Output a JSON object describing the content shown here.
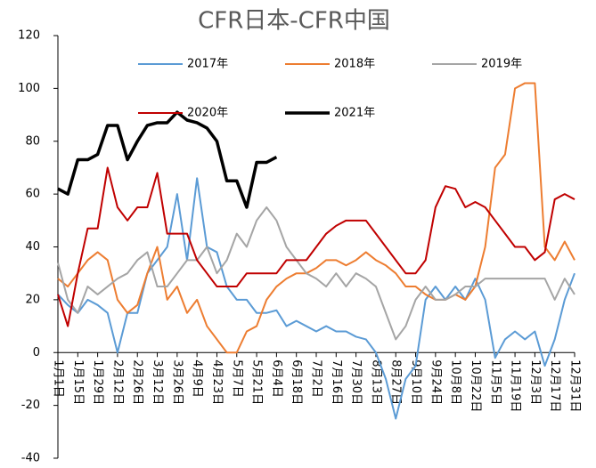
{
  "chart_data": {
    "type": "line",
    "title": "CFR日本-CFR中国",
    "categories": [
      "1月1日",
      null,
      "1月15日",
      null,
      "1月29日",
      null,
      "2月12日",
      null,
      "2月26日",
      null,
      "3月12日",
      null,
      "3月26日",
      null,
      "4月9日",
      null,
      "4月23日",
      null,
      "5月7日",
      null,
      "5月21日",
      null,
      "6月4日",
      null,
      "6月18日",
      null,
      "7月2日",
      null,
      "7月16日",
      null,
      "7月30日",
      null,
      "8月13日",
      null,
      "8月27日",
      null,
      "9月10日",
      null,
      "9月24日",
      null,
      "10月8日",
      null,
      "10月22日",
      null,
      "11月5日",
      null,
      "11月19日",
      null,
      "12月3日",
      null,
      "12月17日",
      null,
      "12月31日"
    ],
    "series": [
      {
        "name": "2017年",
        "color": "#5b9bd5",
        "values": [
          22,
          18,
          15,
          20,
          18,
          15,
          0,
          15,
          15,
          30,
          35,
          40,
          60,
          35,
          66,
          40,
          38,
          25,
          20,
          20,
          15,
          15,
          16,
          10,
          12,
          10,
          8,
          10,
          8,
          8,
          6,
          5,
          0,
          -10,
          -25,
          -10,
          -5,
          20,
          25,
          20,
          25,
          20,
          28,
          20,
          -2,
          5,
          8,
          5,
          8,
          -5,
          5,
          20,
          30
        ]
      },
      {
        "name": "2018年",
        "color": "#ed7d31",
        "values": [
          28,
          25,
          30,
          35,
          38,
          35,
          20,
          15,
          18,
          30,
          40,
          20,
          25,
          15,
          20,
          10,
          5,
          0,
          0,
          8,
          10,
          20,
          25,
          28,
          30,
          30,
          32,
          35,
          35,
          33,
          35,
          38,
          35,
          33,
          30,
          25,
          25,
          22,
          20,
          20,
          22,
          20,
          25,
          40,
          70,
          75,
          100,
          102,
          102,
          40,
          35,
          42,
          35
        ]
      },
      {
        "name": "2019年",
        "color": "#a5a5a5",
        "values": [
          34,
          20,
          15,
          25,
          22,
          25,
          28,
          30,
          35,
          38,
          25,
          25,
          30,
          35,
          35,
          40,
          30,
          35,
          45,
          40,
          50,
          55,
          50,
          40,
          35,
          30,
          28,
          25,
          30,
          25,
          30,
          28,
          25,
          15,
          5,
          10,
          20,
          25,
          20,
          20,
          22,
          25,
          25,
          28,
          28,
          28,
          28,
          28,
          28,
          28,
          20,
          28,
          22
        ]
      },
      {
        "name": "2020年",
        "color": "#c00000",
        "values": [
          22,
          10,
          30,
          47,
          47,
          70,
          55,
          50,
          55,
          55,
          68,
          45,
          45,
          45,
          35,
          30,
          25,
          25,
          25,
          30,
          30,
          30,
          30,
          35,
          35,
          35,
          40,
          45,
          48,
          50,
          50,
          50,
          45,
          40,
          35,
          30,
          30,
          35,
          55,
          63,
          62,
          55,
          57,
          55,
          50,
          45,
          40,
          40,
          35,
          38,
          58,
          60,
          58
        ]
      },
      {
        "name": "2021年",
        "color": "#000000",
        "values": [
          62,
          60,
          73,
          73,
          75,
          86,
          86,
          73,
          80,
          86,
          87,
          87,
          91,
          88,
          87,
          85,
          80,
          65,
          65,
          55,
          72,
          72,
          74,
          null,
          null,
          null,
          null,
          null,
          null,
          null,
          null,
          null,
          null,
          null,
          null,
          null,
          null,
          null,
          null,
          null,
          null,
          null,
          null,
          null,
          null,
          null,
          null,
          null,
          null,
          null,
          null,
          null,
          null
        ]
      }
    ],
    "ylim": [
      -40,
      120
    ],
    "yticks": [
      -40,
      -20,
      0,
      20,
      40,
      60,
      80,
      100,
      120
    ],
    "grid": false
  }
}
